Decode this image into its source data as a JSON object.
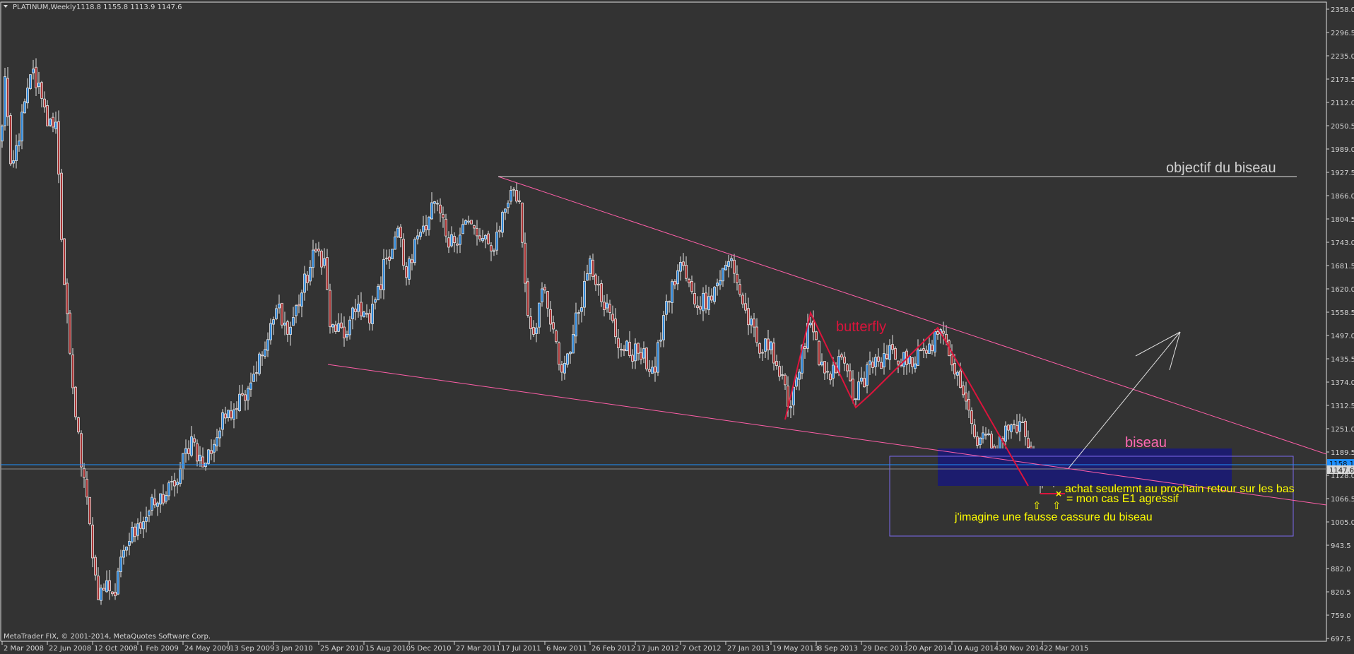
{
  "header": {
    "symbol_timeframe": "PLATINUM,Weekly",
    "ohlc": "1118.8 1155.8 1113.9 1147.6"
  },
  "copyright": "MetaTrader FIX, © 2001-2014, MetaQuotes Software Corp.",
  "annotations": {
    "objectif": "objectif du biseau",
    "butterfly": "butterfly",
    "biseau": "biseau",
    "achat": "achat seulemnt au prochain retour sur les bas",
    "mon_cas": "= mon cas E1 agressif",
    "fausse_cassure": "j'imagine une fausse cassure du biseau",
    "arrow_glyph": "⇧"
  },
  "chart_data": {
    "type": "candlestick",
    "symbol": "PLATINUM",
    "timeframe": "Weekly",
    "ylim": [
      697.5,
      2358.0
    ],
    "y_ticks": [
      "2358.0",
      "2296.5",
      "2235.0",
      "2173.5",
      "2112.0",
      "2050.5",
      "1989.0",
      "1927.5",
      "1866.0",
      "1804.5",
      "1743.0",
      "1681.5",
      "1620.0",
      "1558.5",
      "1497.0",
      "1435.5",
      "1374.0",
      "1312.5",
      "1251.0",
      "1189.5",
      "1128.0",
      "1066.5",
      "1005.0",
      "943.5",
      "882.0",
      "820.5",
      "759.0",
      "697.5"
    ],
    "x_ticks": [
      "2 Mar 2008",
      "22 Jun 2008",
      "12 Oct 2008",
      "1 Feb 2009",
      "24 May 2009",
      "13 Sep 2009",
      "3 Jan 2010",
      "25 Apr 2010",
      "15 Aug 2010",
      "5 Dec 2010",
      "27 Mar 2011",
      "17 Jul 2011",
      "6 Nov 2011",
      "26 Feb 2012",
      "17 Jun 2012",
      "7 Oct 2012",
      "27 Jan 2013",
      "19 May 2013",
      "8 Sep 2013",
      "29 Dec 2013",
      "20 Apr 2014",
      "10 Aug 2014",
      "30 Nov 2014",
      "22 Mar 2015"
    ],
    "last_bar": {
      "open": 1118.8,
      "high": 1155.8,
      "low": 1113.9,
      "close": 1147.6
    },
    "price_lines": [
      {
        "label": "1158.1",
        "value": 1158.1,
        "color": "#1e90ff"
      },
      {
        "label": "1147.6",
        "value": 1147.6,
        "color": "#808080"
      }
    ],
    "colors": {
      "background": "#333333",
      "bull_body": "#2b84d6",
      "bear_body": "#a83232",
      "candle_outline": "#e6e6e6",
      "trendline": "#ff5fa8",
      "pattern": "#dc143c",
      "text_note": "#ffff00",
      "zone": "#1c1c6e",
      "frame": "#7b68ee"
    },
    "close_path": [
      [
        "2008-03-02",
        2050
      ],
      [
        "2008-03-09",
        2180
      ],
      [
        "2008-03-23",
        1950
      ],
      [
        "2008-04-13",
        2010
      ],
      [
        "2008-05-04",
        2150
      ],
      [
        "2008-05-18",
        2200
      ],
      [
        "2008-06-22",
        2050
      ],
      [
        "2008-07-13",
        2060
      ],
      [
        "2008-07-27",
        1750
      ],
      [
        "2008-08-17",
        1450
      ],
      [
        "2008-09-14",
        1150
      ],
      [
        "2008-10-05",
        1000
      ],
      [
        "2008-10-26",
        800
      ],
      [
        "2008-11-16",
        850
      ],
      [
        "2008-12-07",
        810
      ],
      [
        "2008-12-28",
        930
      ],
      [
        "2009-02-01",
        1000
      ],
      [
        "2009-03-15",
        1050
      ],
      [
        "2009-05-03",
        1100
      ],
      [
        "2009-06-14",
        1230
      ],
      [
        "2009-07-12",
        1150
      ],
      [
        "2009-09-13",
        1300
      ],
      [
        "2009-10-18",
        1340
      ],
      [
        "2009-12-13",
        1460
      ],
      [
        "2010-01-17",
        1580
      ],
      [
        "2010-02-07",
        1500
      ],
      [
        "2010-04-18",
        1720
      ],
      [
        "2010-05-09",
        1700
      ],
      [
        "2010-05-23",
        1520
      ],
      [
        "2010-07-04",
        1500
      ],
      [
        "2010-08-01",
        1580
      ],
      [
        "2010-08-29",
        1530
      ],
      [
        "2010-10-10",
        1700
      ],
      [
        "2010-11-07",
        1780
      ],
      [
        "2010-11-28",
        1650
      ],
      [
        "2010-12-26",
        1760
      ],
      [
        "2011-02-06",
        1850
      ],
      [
        "2011-03-13",
        1730
      ],
      [
        "2011-04-24",
        1800
      ],
      [
        "2011-05-22",
        1760
      ],
      [
        "2011-06-26",
        1720
      ],
      [
        "2011-08-14",
        1880
      ],
      [
        "2011-09-04",
        1850
      ],
      [
        "2011-09-25",
        1550
      ],
      [
        "2011-10-09",
        1500
      ],
      [
        "2011-10-30",
        1620
      ],
      [
        "2011-12-18",
        1400
      ],
      [
        "2012-01-15",
        1500
      ],
      [
        "2012-02-26",
        1700
      ],
      [
        "2012-03-18",
        1630
      ],
      [
        "2012-05-13",
        1460
      ],
      [
        "2012-06-24",
        1450
      ],
      [
        "2012-08-05",
        1400
      ],
      [
        "2012-08-26",
        1550
      ],
      [
        "2012-10-07",
        1690
      ],
      [
        "2012-11-11",
        1580
      ],
      [
        "2012-12-16",
        1600
      ],
      [
        "2013-02-10",
        1700
      ],
      [
        "2013-03-10",
        1580
      ],
      [
        "2013-04-21",
        1450
      ],
      [
        "2013-05-19",
        1480
      ],
      [
        "2013-06-30",
        1310
      ],
      [
        "2013-08-25",
        1530
      ],
      [
        "2013-09-15",
        1420
      ],
      [
        "2013-10-13",
        1380
      ],
      [
        "2013-11-10",
        1440
      ],
      [
        "2013-12-15",
        1330
      ],
      [
        "2014-01-19",
        1430
      ],
      [
        "2014-02-16",
        1410
      ],
      [
        "2014-03-16",
        1460
      ],
      [
        "2014-04-20",
        1420
      ],
      [
        "2014-06-08",
        1450
      ],
      [
        "2014-07-06",
        1500
      ],
      [
        "2014-07-27",
        1480
      ],
      [
        "2014-08-24",
        1400
      ],
      [
        "2014-09-21",
        1300
      ],
      [
        "2014-10-05",
        1230
      ],
      [
        "2014-10-26",
        1240
      ],
      [
        "2014-11-16",
        1200
      ],
      [
        "2014-12-07",
        1230
      ],
      [
        "2015-01-25",
        1270
      ],
      [
        "2015-02-08",
        1230
      ],
      [
        "2015-02-22",
        1180
      ],
      [
        "2015-03-15",
        1120
      ],
      [
        "2015-03-22",
        1150
      ],
      [
        "2015-04-05",
        1170
      ],
      [
        "2015-04-12",
        1160
      ],
      [
        "2015-04-19",
        1120
      ],
      [
        "2015-04-26",
        1147.6
      ]
    ]
  }
}
